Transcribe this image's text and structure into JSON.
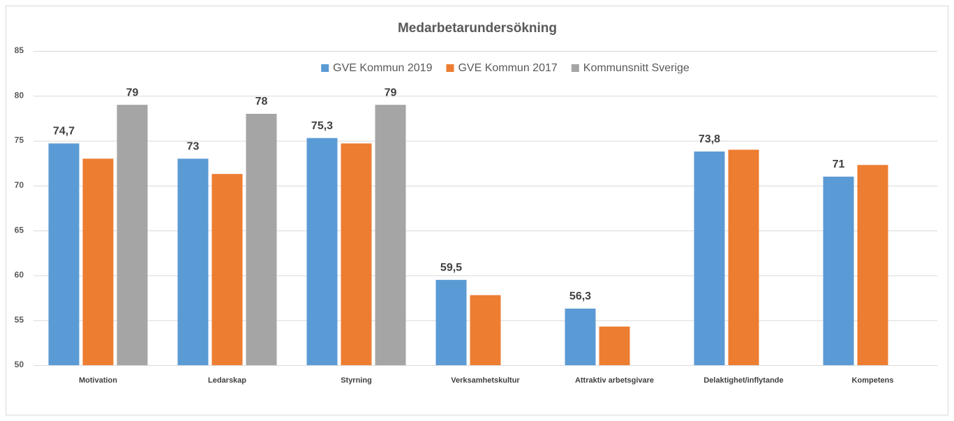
{
  "chart_data": {
    "type": "bar",
    "title": "Medarbetarundersökning",
    "categories": [
      "Motivation",
      "Ledarskap",
      "Styrning",
      "Verksamhetskultur",
      "Attraktiv arbetsgivare",
      "Delaktighet/inflytande",
      "Kompetens"
    ],
    "series": [
      {
        "name": "GVE Kommun 2019",
        "color": "#5b9bd5",
        "values": [
          74.7,
          73,
          75.3,
          59.5,
          56.3,
          73.8,
          71
        ],
        "value_labels": [
          "74,7",
          "73",
          "75,3",
          "59,5",
          "56,3",
          "73,8",
          "71"
        ]
      },
      {
        "name": "GVE Kommun 2017",
        "color": "#ed7d31",
        "values": [
          73,
          71.3,
          74.7,
          57.8,
          54.3,
          74,
          72.3
        ]
      },
      {
        "name": "Kommunsnitt Sverige",
        "color": "#a5a5a5",
        "values": [
          79,
          78,
          79,
          null,
          null,
          null,
          null
        ],
        "data_labels": true
      }
    ],
    "ylim": [
      50,
      85
    ],
    "yticks": [
      50,
      55,
      60,
      65,
      70,
      75,
      80,
      85
    ],
    "grid": true,
    "legend": "top"
  }
}
